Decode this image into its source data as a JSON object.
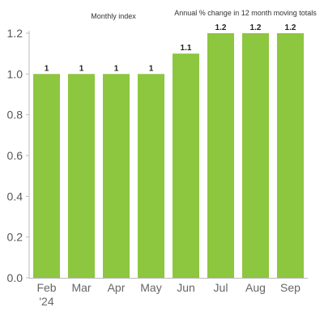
{
  "annotations": {
    "left": "Monthly index",
    "right": "Annual % change in 12 month moving totals"
  },
  "chart_data": {
    "type": "bar",
    "categories": [
      "Feb",
      "Mar",
      "Apr",
      "May",
      "Jun",
      "Jul",
      "Aug",
      "Sep"
    ],
    "sub_categories": [
      "'24",
      "",
      "",
      "",
      "",
      "",
      "",
      ""
    ],
    "values": [
      1,
      1,
      1,
      1,
      1.1,
      1.2,
      1.2,
      1.2
    ],
    "data_labels": [
      "1",
      "1",
      "1",
      "1",
      "1.1",
      "1.2",
      "1.2",
      "1.2"
    ],
    "ylim": [
      0,
      1.2
    ],
    "yticks": [
      0,
      0.2,
      0.4,
      0.6,
      0.8,
      1.0,
      1.2
    ],
    "ytick_labels": [
      "0.0",
      "0.2",
      "0.4",
      "0.6",
      "0.8",
      "1.0",
      "1.2"
    ],
    "bar_color": "#8dc63f",
    "grid": false,
    "legend": "none"
  }
}
